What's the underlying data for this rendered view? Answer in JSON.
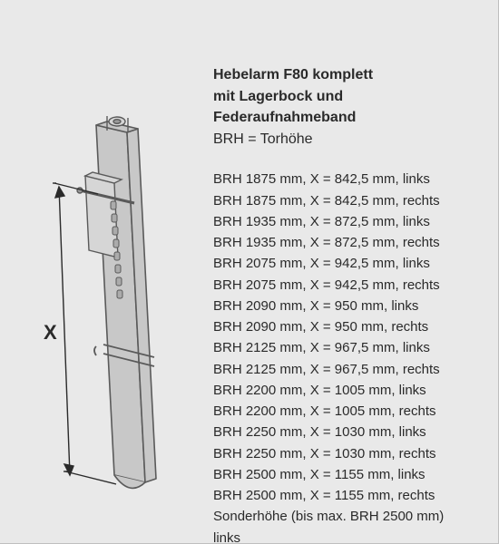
{
  "header": {
    "title_line1": "Hebelarm F80 komplett",
    "title_line2": "mit Lagerbock und",
    "title_line3": "Federaufnahmeband",
    "subtitle": "BRH = Torhöhe"
  },
  "variants": [
    {
      "brh": 1875,
      "x": "842,5",
      "side": "links"
    },
    {
      "brh": 1875,
      "x": "842,5",
      "side": "rechts"
    },
    {
      "brh": 1935,
      "x": "872,5",
      "side": "links"
    },
    {
      "brh": 1935,
      "x": "872,5",
      "side": "rechts"
    },
    {
      "brh": 2075,
      "x": "942,5",
      "side": "links"
    },
    {
      "brh": 2075,
      "x": "942,5",
      "side": "rechts"
    },
    {
      "brh": 2090,
      "x": "950",
      "side": "links"
    },
    {
      "brh": 2090,
      "x": "950",
      "side": "rechts"
    },
    {
      "brh": 2125,
      "x": "967,5",
      "side": "links"
    },
    {
      "brh": 2125,
      "x": "967,5",
      "side": "rechts"
    },
    {
      "brh": 2200,
      "x": "1005",
      "side": "links"
    },
    {
      "brh": 2200,
      "x": "1005",
      "side": "rechts"
    },
    {
      "brh": 2250,
      "x": "1030",
      "side": "links"
    },
    {
      "brh": 2250,
      "x": "1030",
      "side": "rechts"
    },
    {
      "brh": 2500,
      "x": "1155",
      "side": "links"
    },
    {
      "brh": 2500,
      "x": "1155",
      "side": "rechts"
    }
  ],
  "special": {
    "line1": "Sonderhöhe (bis max. BRH 2500 mm)",
    "line2": "links"
  },
  "style": {
    "colors": {
      "page_bg": "#e9e9e9",
      "text": "#2a2a2a",
      "part_fill": "#c8c8c8",
      "part_fill_light": "#d6d6d6",
      "part_stroke": "#5a5a5a",
      "dim_stroke": "#2a2a2a"
    },
    "fonts": {
      "title_size_pt": 12,
      "body_size_pt": 11,
      "title_weight": "bold"
    }
  },
  "illustration": {
    "label_X": "X"
  }
}
